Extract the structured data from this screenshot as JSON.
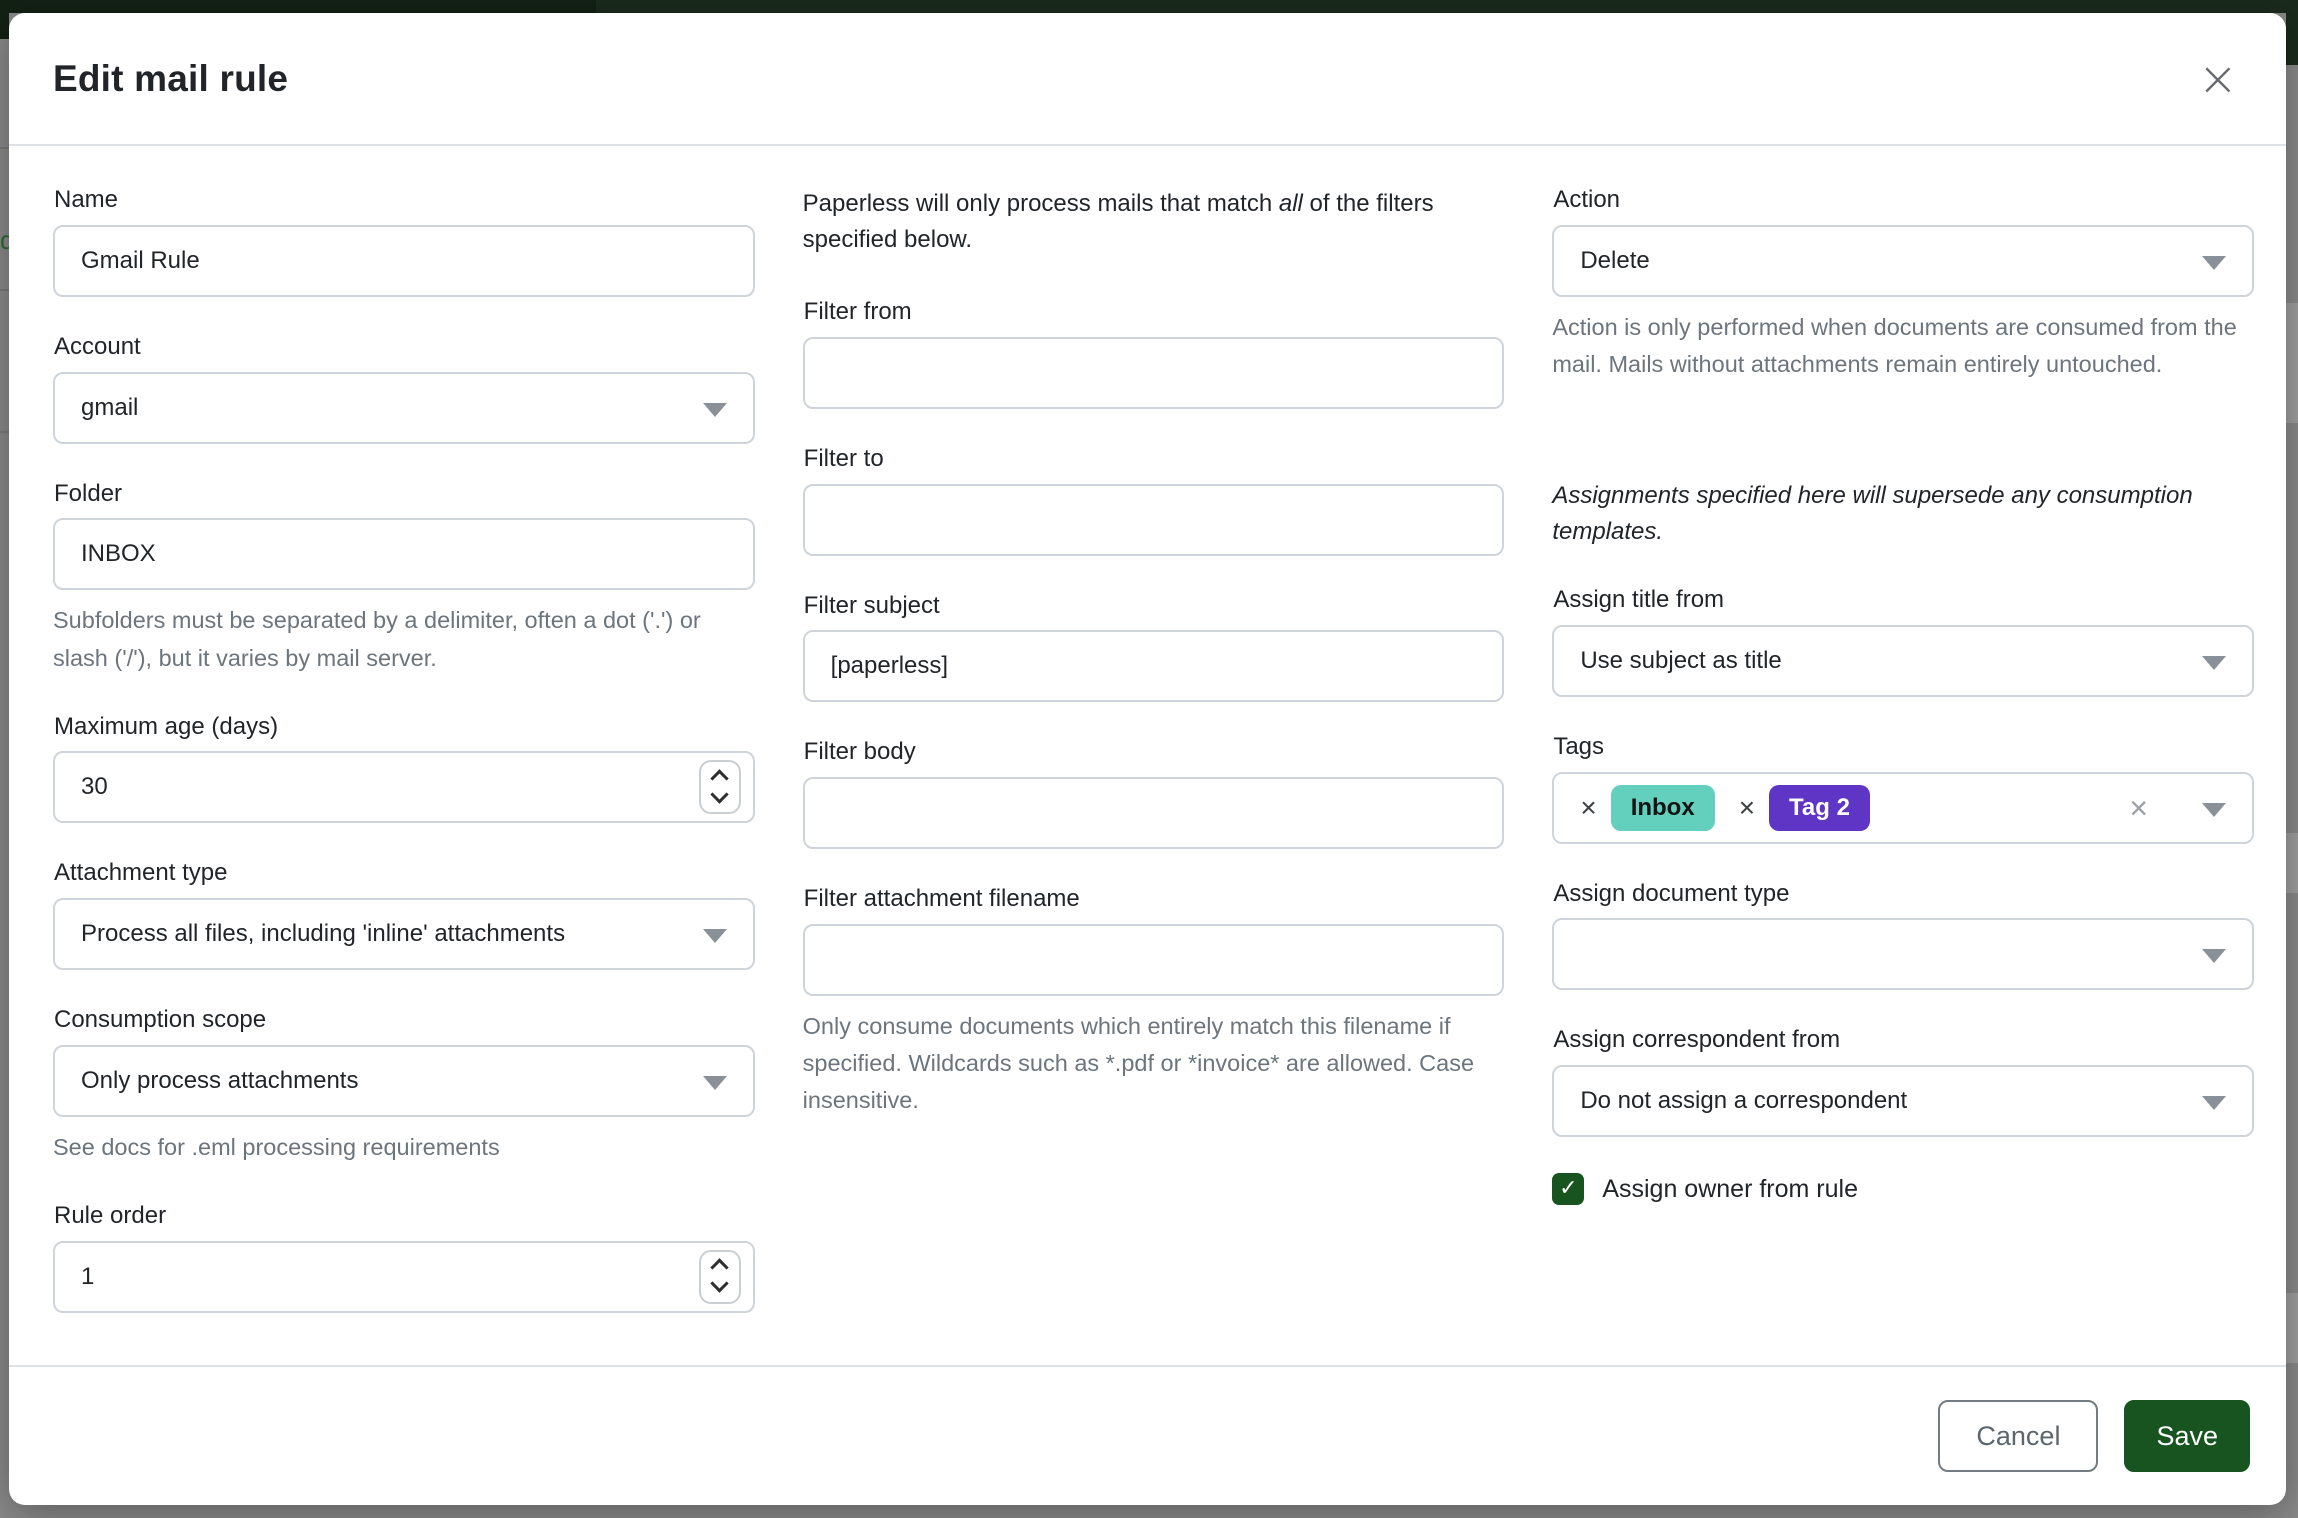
{
  "colors": {
    "accent_green": "#17541f",
    "navbar_green": "#1a2b1c",
    "backdrop_gray": "#8b8b8b",
    "tag_inbox_bg": "#63cfbd",
    "tag_tag2_bg": "#5e35c4"
  },
  "icons": {
    "close": "×",
    "remove_tag": "×",
    "clear": "×",
    "check": "✓"
  },
  "backdrop": {
    "partial_text": "d"
  },
  "modal": {
    "title": "Edit mail rule"
  },
  "left": {
    "name": {
      "label": "Name",
      "value": "Gmail Rule"
    },
    "account": {
      "label": "Account",
      "value": "gmail"
    },
    "folder": {
      "label": "Folder",
      "value": "INBOX",
      "help": "Subfolders must be separated by a delimiter, often a dot ('.') or slash ('/'), but it varies by mail server."
    },
    "max_age": {
      "label": "Maximum age (days)",
      "value": "30"
    },
    "attachment_type": {
      "label": "Attachment type",
      "value": "Process all files, including 'inline' attachments"
    },
    "consumption_scope": {
      "label": "Consumption scope",
      "value": "Only process attachments",
      "help": "See docs for .eml processing requirements"
    },
    "rule_order": {
      "label": "Rule order",
      "value": "1"
    }
  },
  "middle": {
    "intro": {
      "prefix": "Paperless will only process mails that match ",
      "italic": "all",
      "suffix": " of the filters specified below."
    },
    "filter_from": {
      "label": "Filter from",
      "value": ""
    },
    "filter_to": {
      "label": "Filter to",
      "value": ""
    },
    "filter_subject": {
      "label": "Filter subject",
      "value": "[paperless]"
    },
    "filter_body": {
      "label": "Filter body",
      "value": ""
    },
    "filter_filename": {
      "label": "Filter attachment filename",
      "value": "",
      "help": "Only consume documents which entirely match this filename if specified. Wildcards such as *.pdf or *invoice* are allowed. Case insensitive."
    }
  },
  "right": {
    "action": {
      "label": "Action",
      "value": "Delete",
      "help": "Action is only performed when documents are consumed from the mail. Mails without attachments remain entirely untouched."
    },
    "assignments_note": "Assignments specified here will supersede any consumption templates.",
    "assign_title": {
      "label": "Assign title from",
      "value": "Use subject as title"
    },
    "tags": {
      "label": "Tags",
      "chips": [
        {
          "label": "Inbox"
        },
        {
          "label": "Tag 2"
        }
      ]
    },
    "assign_doc_type": {
      "label": "Assign document type",
      "value": ""
    },
    "assign_correspondent": {
      "label": "Assign correspondent from",
      "value": "Do not assign a correspondent"
    },
    "assign_owner": {
      "label": "Assign owner from rule",
      "checked": true
    }
  },
  "footer": {
    "cancel_label": "Cancel",
    "save_label": "Save"
  }
}
